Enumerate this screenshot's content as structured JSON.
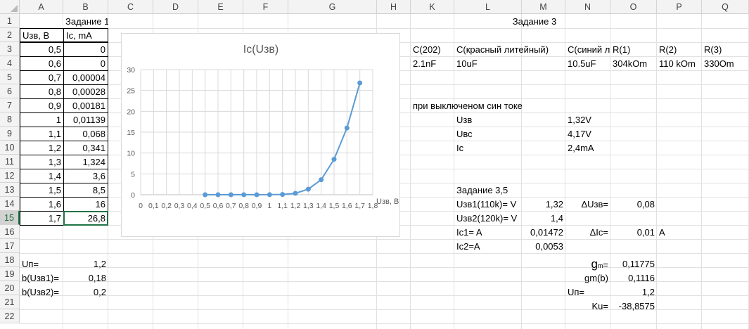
{
  "columns": [
    "A",
    "B",
    "C",
    "D",
    "E",
    "F",
    "G",
    "H",
    "K",
    "L",
    "M",
    "N",
    "O",
    "P",
    "Q"
  ],
  "rows": [
    "1",
    "2",
    "3",
    "4",
    "5",
    "6",
    "7",
    "8",
    "9",
    "10",
    "11",
    "12",
    "13",
    "14",
    "15",
    "16",
    "17",
    "18",
    "19",
    "20",
    "21",
    "22"
  ],
  "selected_row": "15",
  "task1": {
    "title": "Задание 1",
    "header_u": "Uзв, В",
    "header_i": "Ic, mA",
    "u_values": [
      "0,5",
      "0,6",
      "0,7",
      "0,8",
      "0,9",
      "1",
      "1,1",
      "1,2",
      "1,3",
      "1,4",
      "1,5",
      "1,6",
      "1,7"
    ],
    "i_values": [
      "0",
      "0",
      "0,00004",
      "0,00028",
      "0,00181",
      "0,01139",
      "0,068",
      "0,341",
      "1,324",
      "3,6",
      "8,5",
      "16",
      "26,8"
    ],
    "up_label": "Uп=",
    "up_value": "1,2",
    "b1_label": "b(Uзв1)=",
    "b1_value": "0,18",
    "b2_label": "b(Uзв2)=",
    "b2_value": "0,2"
  },
  "task3": {
    "title": "Задание 3",
    "headers": [
      "C(202)",
      "C(красный литейный)",
      "C(синий л",
      "R(1)",
      "R(2)",
      "R(3)"
    ],
    "values": [
      "2.1nF",
      "10uF",
      "10.5uF",
      "304kOm",
      "110 kOm",
      "330Om"
    ],
    "off_note": "при выключеном син токе",
    "measures": [
      {
        "label": "Uзв",
        "value": "1,32V"
      },
      {
        "label": "Uвс",
        "value": "4,17V"
      },
      {
        "label": "Ic",
        "value": "2,4mA"
      }
    ]
  },
  "task35": {
    "title": "Задание 3,5",
    "uzv1_label": "Uзв1(110k)= V",
    "uzv1_value": "1,32",
    "uzv2_label": "Uзв2(120k)= V",
    "uzv2_value": "1,4",
    "ic1_label": "Ic1= A",
    "ic1_value": "0,01472",
    "ic2_label": "Ic2=A",
    "ic2_value": "0,0053",
    "du_label": "ΔUзв=",
    "du_value": "0,08",
    "di_label": "ΔIc=",
    "di_value": "0,01",
    "di_unit": "A",
    "gm_label_main": "g",
    "gm_label_sub": "m",
    "gm_label_eq": "=",
    "gm_value": "0,11775",
    "gmb_label": "gm(b)",
    "gmb_value": "0,1116",
    "up_label": "Uп=",
    "up_value": "1,2",
    "ku_label": "Ku=",
    "ku_value": "-38,8575"
  },
  "chart_data": {
    "type": "line",
    "title": "Ic(Uзв)",
    "xlabel": "Uзв, В",
    "ylabel": "",
    "x_ticks": [
      "0",
      "0,1",
      "0,2",
      "0,3",
      "0,4",
      "0,5",
      "0,6",
      "0,7",
      "0,8",
      "0,9",
      "1",
      "1,1",
      "1,2",
      "1,3",
      "1,4",
      "1,5",
      "1,6",
      "1,7",
      "1,8"
    ],
    "y_ticks": [
      "0",
      "5",
      "10",
      "15",
      "20",
      "25",
      "30"
    ],
    "xlim": [
      0,
      1.8
    ],
    "ylim": [
      0,
      30
    ],
    "grid": true,
    "series_color": "#5b9bd5",
    "series": [
      {
        "x": [
          0.5,
          0.6,
          0.7,
          0.8,
          0.9,
          1.0,
          1.1,
          1.2,
          1.3,
          1.4,
          1.5,
          1.6,
          1.7
        ],
        "y": [
          0,
          0,
          4e-05,
          0.00028,
          0.00181,
          0.01139,
          0.068,
          0.341,
          1.324,
          3.6,
          8.5,
          16,
          26.8
        ]
      }
    ]
  }
}
